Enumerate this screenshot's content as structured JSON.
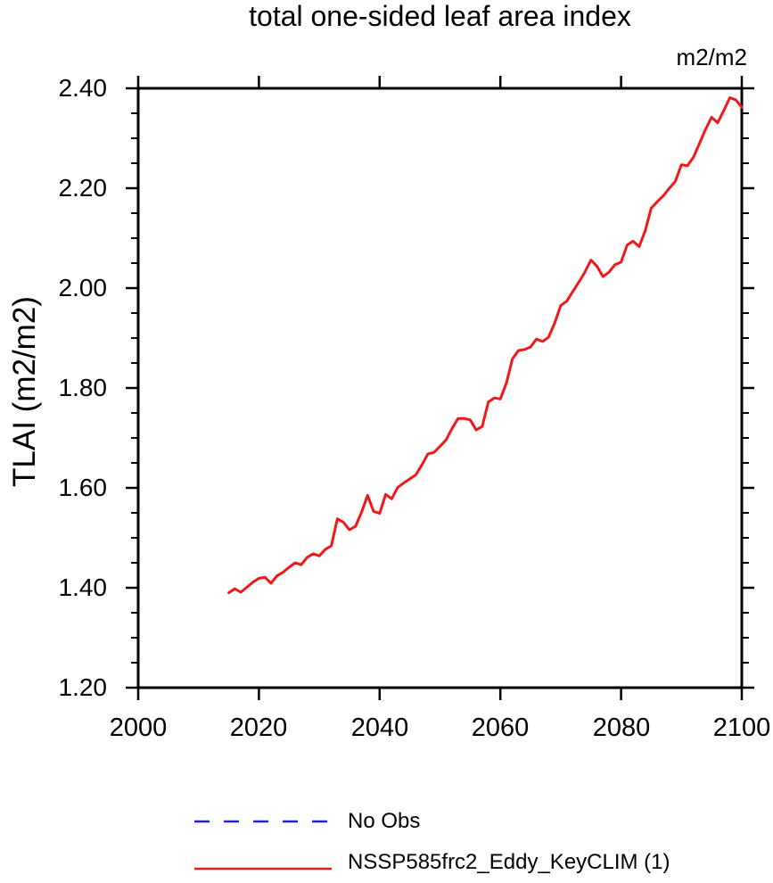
{
  "header": {
    "title": "total one-sided leaf area index",
    "units_label": "m2/m2"
  },
  "y_axis": {
    "title": "TLAI  (m2/m2)",
    "tick_labels": [
      "2.40",
      "2.20",
      "2.00",
      "1.80",
      "1.60",
      "1.40",
      "1.20"
    ]
  },
  "x_axis": {
    "tick_labels": [
      "2000",
      "2020",
      "2040",
      "2060",
      "2080",
      "2100"
    ]
  },
  "legend": {
    "entries": [
      {
        "label": "No Obs",
        "color": "#2222cc",
        "line_style": "dashed"
      },
      {
        "label": "NSSP585frc2_Eddy_KeyCLIM (1)",
        "color": "#f01818",
        "line_style": "solid"
      }
    ]
  },
  "chart_data": {
    "type": "line",
    "title": "total one-sided leaf area index",
    "xlabel": "",
    "ylabel": "TLAI (m2/m2)",
    "units": "m2/m2",
    "xlim": [
      2000,
      2100
    ],
    "ylim": [
      1.2,
      2.4
    ],
    "x_major_ticks": [
      2000,
      2020,
      2040,
      2060,
      2080,
      2100
    ],
    "y_major_ticks": [
      1.2,
      1.4,
      1.6,
      1.8,
      2.0,
      2.2,
      2.4
    ],
    "y_minor_tick_step": 0.05,
    "grid": false,
    "legend_position": "below-plot",
    "frame_color": "#000000",
    "series": [
      {
        "name": "NSSP585frc2_Eddy_KeyCLIM (1)",
        "color": "#f01818",
        "line_style": "solid",
        "x_start": 2015,
        "x_step": 1,
        "values": [
          1.39,
          1.398,
          1.391,
          1.401,
          1.411,
          1.419,
          1.421,
          1.409,
          1.424,
          1.431,
          1.441,
          1.45,
          1.446,
          1.461,
          1.468,
          1.464,
          1.477,
          1.484,
          1.538,
          1.531,
          1.516,
          1.523,
          1.551,
          1.585,
          1.553,
          1.549,
          1.587,
          1.578,
          1.601,
          1.61,
          1.618,
          1.626,
          1.646,
          1.668,
          1.671,
          1.683,
          1.696,
          1.719,
          1.739,
          1.739,
          1.736,
          1.716,
          1.723,
          1.772,
          1.78,
          1.778,
          1.81,
          1.858,
          1.875,
          1.877,
          1.882,
          1.898,
          1.893,
          1.902,
          1.93,
          1.965,
          1.974,
          1.993,
          2.012,
          2.032,
          2.056,
          2.044,
          2.023,
          2.032,
          2.047,
          2.052,
          2.086,
          2.094,
          2.083,
          2.115,
          2.16,
          2.173,
          2.185,
          2.2,
          2.214,
          2.247,
          2.245,
          2.262,
          2.29,
          2.318,
          2.342,
          2.331,
          2.355,
          2.381,
          2.377,
          2.362
        ]
      },
      {
        "name": "No Obs",
        "color": "#2222cc",
        "line_style": "dashed",
        "values": []
      }
    ]
  }
}
